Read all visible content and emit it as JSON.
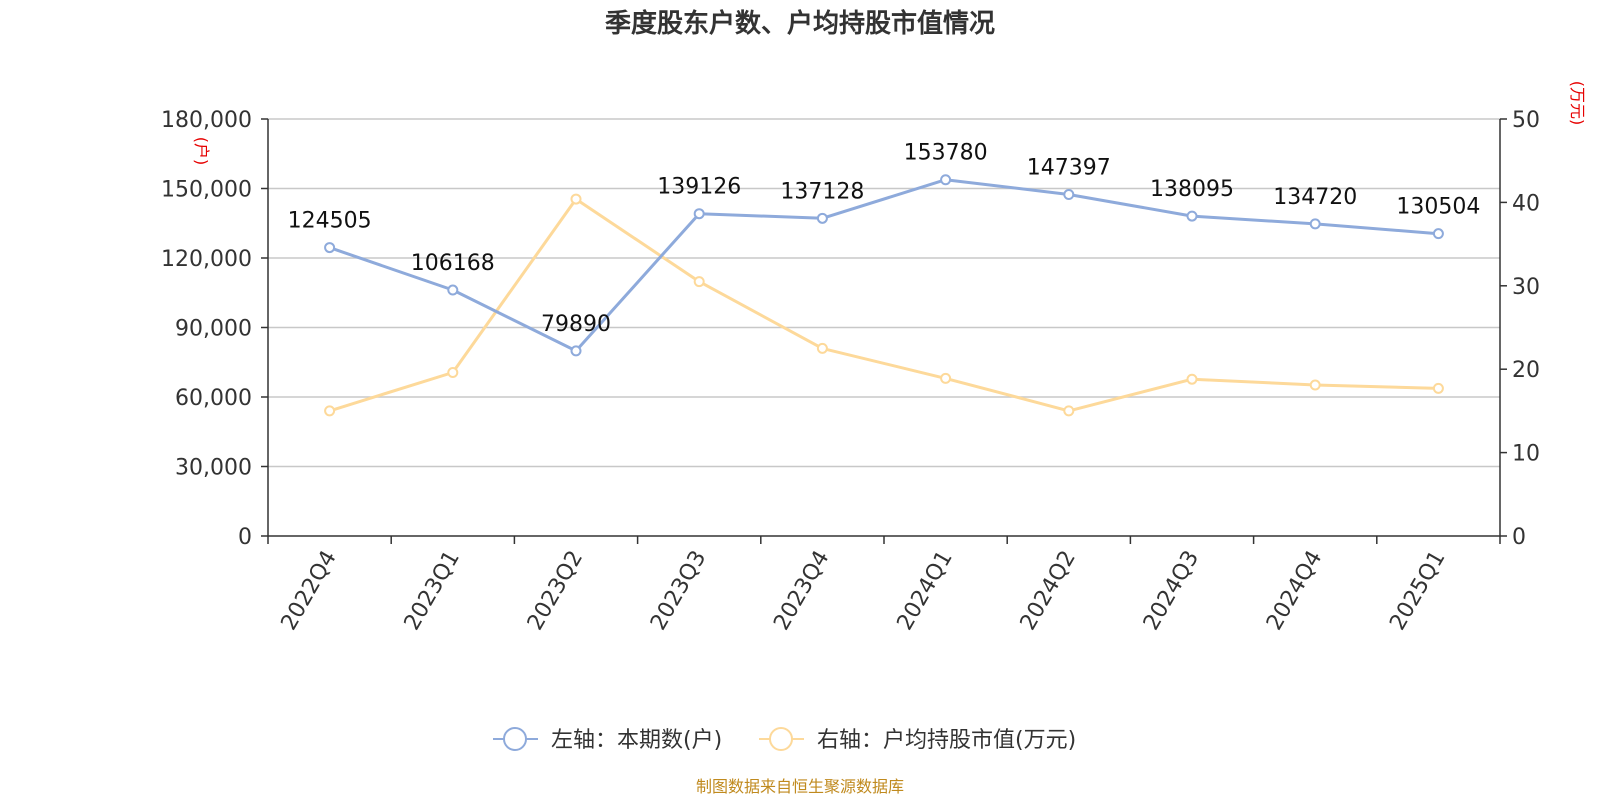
{
  "chart_data": {
    "type": "line",
    "title": "季度股东户数、户均持股市值情况",
    "categories": [
      "2022Q4",
      "2023Q1",
      "2023Q2",
      "2023Q3",
      "2023Q4",
      "2024Q1",
      "2024Q2",
      "2024Q3",
      "2024Q4",
      "2025Q1"
    ],
    "series": [
      {
        "name": "左轴：本期数(户)",
        "axis": "left",
        "color": "#8eaadb",
        "values": [
          124505,
          106168,
          79890,
          139126,
          137128,
          153780,
          147397,
          138095,
          134720,
          130504
        ],
        "data_labels": [
          "124505",
          "106168",
          "79890",
          "139126",
          "137128",
          "153780",
          "147397",
          "138095",
          "134720",
          "130504"
        ]
      },
      {
        "name": "右轴：户均持股市值(万元)",
        "axis": "right",
        "color": "#fdd99a",
        "values": [
          15.0,
          19.6,
          40.4,
          30.5,
          22.5,
          18.9,
          15.0,
          18.8,
          18.1,
          17.7
        ]
      }
    ],
    "y_left": {
      "range": [
        0,
        180000
      ],
      "ticks": [
        0,
        30000,
        60000,
        90000,
        120000,
        150000,
        180000
      ],
      "tick_labels": [
        "0",
        "30,000",
        "60,000",
        "90,000",
        "120,000",
        "150,000",
        "180,000"
      ],
      "unit": "(户)",
      "unit_color": "#e60000"
    },
    "y_right": {
      "range": [
        0,
        50
      ],
      "ticks": [
        0,
        10,
        20,
        30,
        40,
        50
      ],
      "tick_labels": [
        "0",
        "10",
        "20",
        "30",
        "40",
        "50"
      ],
      "unit": "(万元)",
      "unit_color": "#e60000"
    },
    "grid": true,
    "legend_position": "bottom-center",
    "source": "制图数据来自恒生聚源数据库",
    "source_color": "#c08a1e"
  }
}
